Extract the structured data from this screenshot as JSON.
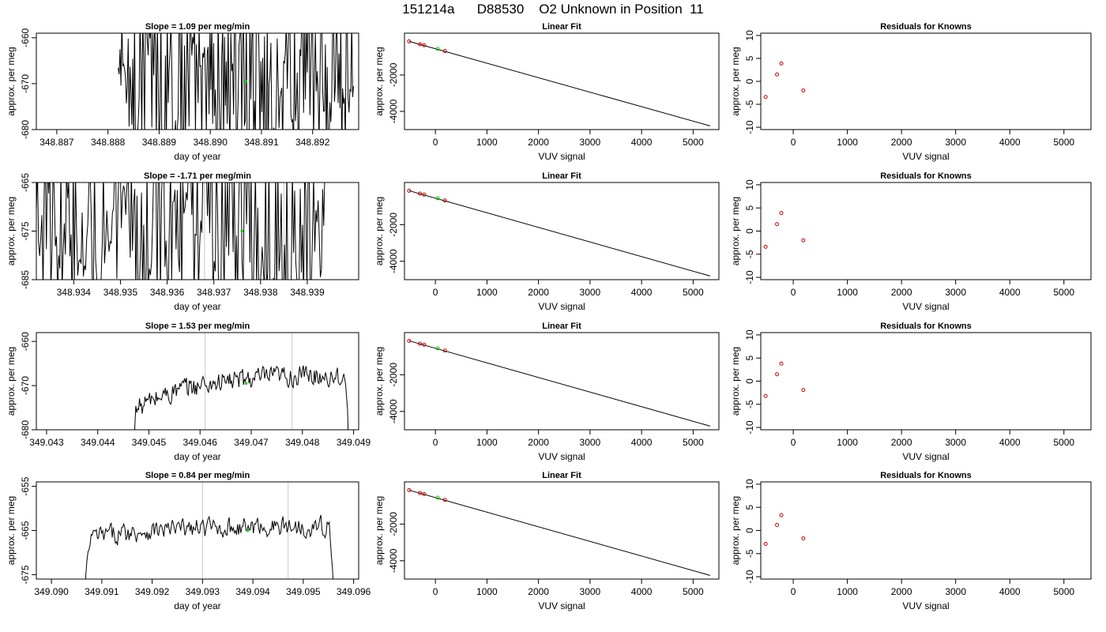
{
  "page": {
    "title": "151214a      D88530    O2 Unknown in Position  11"
  },
  "colors": {
    "trace": "#000000",
    "fit_line": "#000000",
    "known_points": "#cc0000",
    "unknown_point": "#00cc00",
    "window_marker": "#c8c8c8",
    "frame": "#000000"
  },
  "chart_data": [
    {
      "id": "ts1",
      "type": "line",
      "title": "Slope =  1.09  per meg/min",
      "xlabel": "day of year",
      "ylabel": "approx. per meg",
      "xlim": [
        348.8866,
        348.8929
      ],
      "ylim": [
        -680,
        -659
      ],
      "xticks": [
        "348.887",
        "348.888",
        "348.889",
        "348.890",
        "348.891",
        "348.892"
      ],
      "yticks": [
        "-680",
        "-670",
        "-660"
      ],
      "x_start": 348.8882,
      "x_end": 348.8928,
      "style": "spiky",
      "center": -670,
      "spread": 14,
      "trend": 0,
      "markers": [],
      "unknown_point": {
        "x": 348.8907,
        "y": -669.5
      }
    },
    {
      "id": "ts2",
      "type": "line",
      "title": "Slope =  -1.71  per meg/min",
      "xlabel": "day of year",
      "ylabel": "approx. per meg",
      "xlim": [
        348.9332,
        348.9401
      ],
      "ylim": [
        -685,
        -665
      ],
      "xticks": [
        "348.934",
        "348.935",
        "348.936",
        "348.937",
        "348.938",
        "348.939"
      ],
      "yticks": [
        "-685",
        "-675",
        "-665"
      ],
      "x_start": 348.9332,
      "x_end": 348.9394,
      "style": "spiky",
      "center": -675,
      "spread": 13,
      "trend": 0,
      "markers": [
        348.9368,
        348.9385
      ],
      "unknown_point": {
        "x": 348.9376,
        "y": -675
      }
    },
    {
      "id": "ts3",
      "type": "line",
      "title": "Slope =  1.53  per meg/min",
      "xlabel": "day of year",
      "ylabel": "approx. per meg",
      "xlim": [
        349.0428,
        349.0491
      ],
      "ylim": [
        -680,
        -658
      ],
      "xticks": [
        "349.043",
        "349.044",
        "349.045",
        "349.046",
        "349.047",
        "349.048",
        "349.049"
      ],
      "yticks": [
        "-680",
        "-670",
        "-660"
      ],
      "x_start": 349.0446,
      "x_end": 349.0489,
      "style": "smooth",
      "center": -672,
      "spread": 2.2,
      "trend": 9,
      "markers": [
        349.0461,
        349.0478
      ],
      "unknown_point": {
        "x": 349.0469,
        "y": -669.5
      }
    },
    {
      "id": "ts4",
      "type": "line",
      "title": "Slope =  0.84  per meg/min",
      "xlabel": "day of year",
      "ylabel": "approx. per meg",
      "xlim": [
        349.0897,
        349.0961
      ],
      "ylim": [
        -676,
        -654
      ],
      "xticks": [
        "349.090",
        "349.091",
        "349.092",
        "349.093",
        "349.094",
        "349.095",
        "349.096"
      ],
      "yticks": [
        "-675",
        "-665",
        "-655"
      ],
      "x_start": 349.0906,
      "x_end": 349.0956,
      "style": "smooth",
      "center": -665.5,
      "spread": 2.0,
      "trend": 3,
      "markers": [
        349.093,
        349.0947
      ],
      "unknown_point": {
        "x": 349.0939,
        "y": -665
      }
    },
    {
      "id": "fit1",
      "type": "line",
      "title": "Linear Fit",
      "xlabel": "VUV signal",
      "ylabel": "approx. per meg",
      "xlim": [
        -600,
        5500
      ],
      "ylim": [
        -5000,
        300
      ],
      "xticks": [
        0,
        1000,
        2000,
        3000,
        4000,
        5000
      ],
      "yticks": [
        -4000,
        -2000
      ],
      "line": {
        "x": [
          -510,
          5330
        ],
        "y": [
          -150,
          -4800
        ]
      },
      "knowns": {
        "x": [
          -510,
          -300,
          -220,
          185
        ],
        "y": [
          -150,
          -310,
          -360,
          -680
        ]
      },
      "unknown": {
        "x": 45,
        "y": -560
      }
    },
    {
      "id": "fit2",
      "type": "line",
      "title": "Linear Fit",
      "xlabel": "VUV signal",
      "ylabel": "approx. per meg",
      "xlim": [
        -600,
        5500
      ],
      "ylim": [
        -5000,
        300
      ],
      "xticks": [
        0,
        1000,
        2000,
        3000,
        4000,
        5000
      ],
      "yticks": [
        -4000,
        -2000
      ],
      "line": {
        "x": [
          -510,
          5330
        ],
        "y": [
          -150,
          -4800
        ]
      },
      "knowns": {
        "x": [
          -510,
          -300,
          -220,
          185
        ],
        "y": [
          -150,
          -310,
          -360,
          -680
        ]
      },
      "unknown": {
        "x": 45,
        "y": -560
      }
    },
    {
      "id": "fit3",
      "type": "line",
      "title": "Linear Fit",
      "xlabel": "VUV signal",
      "ylabel": "approx. per meg",
      "xlim": [
        -600,
        5500
      ],
      "ylim": [
        -5000,
        300
      ],
      "xticks": [
        0,
        1000,
        2000,
        3000,
        4000,
        5000
      ],
      "yticks": [
        -4000,
        -2000
      ],
      "line": {
        "x": [
          -510,
          5330
        ],
        "y": [
          -150,
          -4800
        ]
      },
      "knowns": {
        "x": [
          -510,
          -300,
          -220,
          185
        ],
        "y": [
          -150,
          -310,
          -360,
          -680
        ]
      },
      "unknown": {
        "x": 45,
        "y": -560
      }
    },
    {
      "id": "fit4",
      "type": "line",
      "title": "Linear Fit",
      "xlabel": "VUV signal",
      "ylabel": "approx. per meg",
      "xlim": [
        -600,
        5500
      ],
      "ylim": [
        -5000,
        300
      ],
      "xticks": [
        0,
        1000,
        2000,
        3000,
        4000,
        5000
      ],
      "yticks": [
        -4000,
        -2000
      ],
      "line": {
        "x": [
          -510,
          5330
        ],
        "y": [
          -150,
          -4800
        ]
      },
      "knowns": {
        "x": [
          -510,
          -300,
          -220,
          185
        ],
        "y": [
          -150,
          -310,
          -360,
          -680
        ]
      },
      "unknown": {
        "x": 45,
        "y": -560
      }
    },
    {
      "id": "res1",
      "type": "scatter",
      "title": "Residuals for Knowns",
      "xlabel": "VUV signal",
      "ylabel": "approx. per meg",
      "xlim": [
        -600,
        5500
      ],
      "ylim": [
        -10.5,
        10.5
      ],
      "xticks": [
        0,
        1000,
        2000,
        3000,
        4000,
        5000
      ],
      "yticks": [
        -10,
        -5,
        0,
        5,
        10
      ],
      "points": {
        "x": [
          -510,
          -300,
          -220,
          185
        ],
        "y": [
          -3.4,
          1.5,
          3.9,
          -2.0
        ]
      }
    },
    {
      "id": "res2",
      "type": "scatter",
      "title": "Residuals for Knowns",
      "xlabel": "VUV signal",
      "ylabel": "approx. per meg",
      "xlim": [
        -600,
        5500
      ],
      "ylim": [
        -10.5,
        10.5
      ],
      "xticks": [
        0,
        1000,
        2000,
        3000,
        4000,
        5000
      ],
      "yticks": [
        -10,
        -5,
        0,
        5,
        10
      ],
      "points": {
        "x": [
          -510,
          -300,
          -220,
          185
        ],
        "y": [
          -3.4,
          1.5,
          3.9,
          -2.0
        ]
      }
    },
    {
      "id": "res3",
      "type": "scatter",
      "title": "Residuals for Knowns",
      "xlabel": "VUV signal",
      "ylabel": "approx. per meg",
      "xlim": [
        -600,
        5500
      ],
      "ylim": [
        -10.5,
        10.5
      ],
      "xticks": [
        0,
        1000,
        2000,
        3000,
        4000,
        5000
      ],
      "yticks": [
        -10,
        -5,
        0,
        5,
        10
      ],
      "points": {
        "x": [
          -510,
          -300,
          -220,
          185
        ],
        "y": [
          -3.2,
          1.5,
          3.8,
          -1.9
        ]
      }
    },
    {
      "id": "res4",
      "type": "scatter",
      "title": "Residuals for Knowns",
      "xlabel": "VUV signal",
      "ylabel": "approx. per meg",
      "xlim": [
        -600,
        5500
      ],
      "ylim": [
        -10.5,
        10.5
      ],
      "xticks": [
        0,
        1000,
        2000,
        3000,
        4000,
        5000
      ],
      "yticks": [
        -10,
        -5,
        0,
        5,
        10
      ],
      "points": {
        "x": [
          -510,
          -300,
          -220,
          185
        ],
        "y": [
          -2.9,
          1.2,
          3.3,
          -1.7
        ]
      }
    }
  ]
}
